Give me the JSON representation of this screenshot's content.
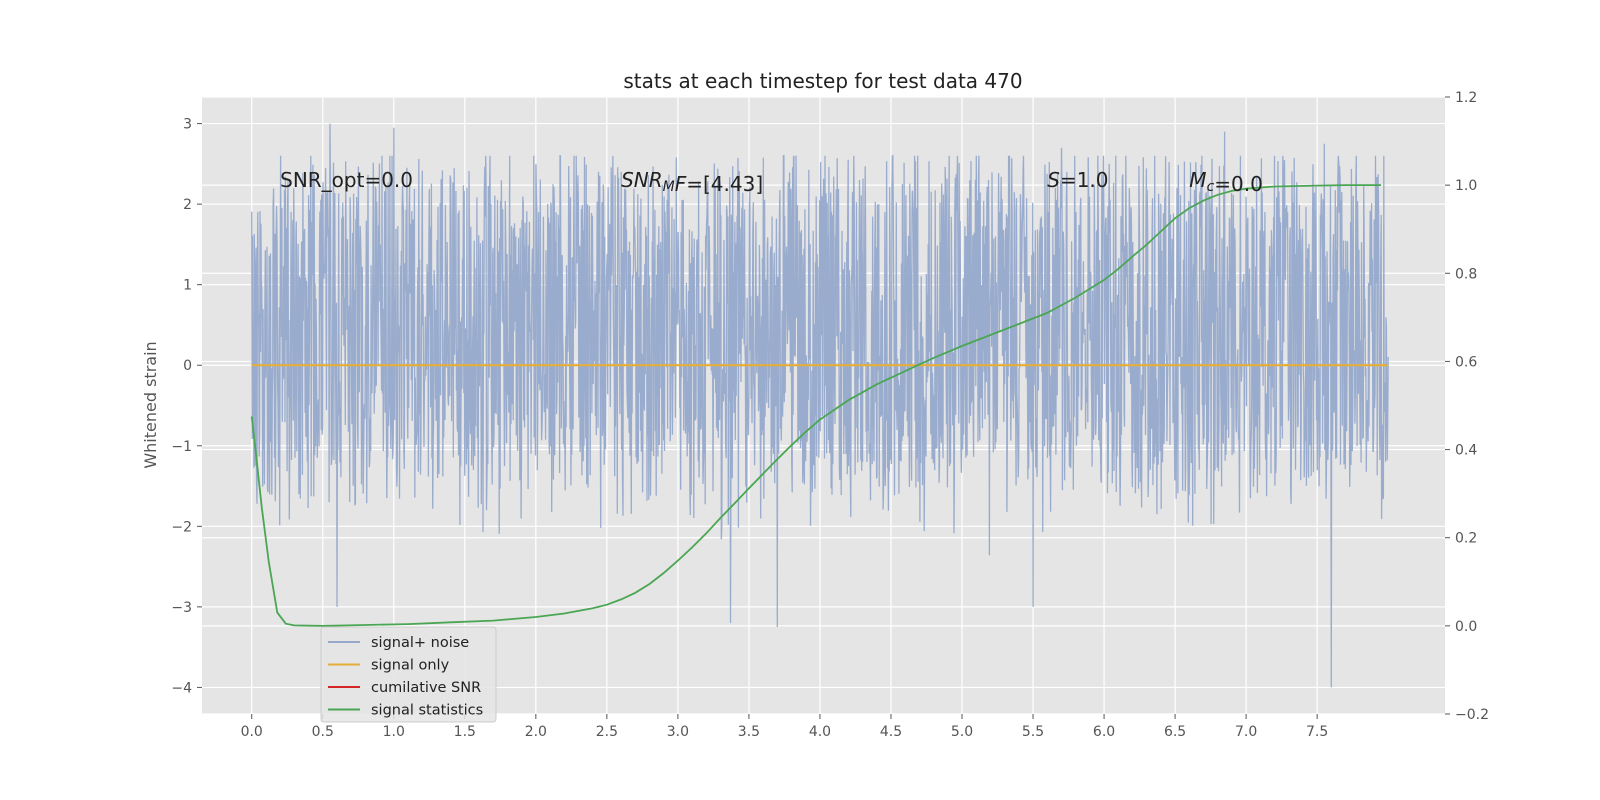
{
  "chart_data": {
    "type": "line",
    "title": "stats at each timestep for test data 470",
    "ylabel": "Whitened strain",
    "y2label": "",
    "xlim": [
      -0.35,
      8.4
    ],
    "ylim": [
      -4.33,
      3.33
    ],
    "y2lim": [
      -0.2,
      1.2
    ],
    "x_ticks": [
      0.0,
      0.5,
      1.0,
      1.5,
      2.0,
      2.5,
      3.0,
      3.5,
      4.0,
      4.5,
      5.0,
      5.5,
      6.0,
      6.5,
      7.0,
      7.5
    ],
    "x_tick_labels": [
      "0.0",
      "0.5",
      "1.0",
      "1.5",
      "2.0",
      "2.5",
      "3.0",
      "3.5",
      "4.0",
      "4.5",
      "5.0",
      "5.5",
      "6.0",
      "6.5",
      "7.0",
      "7.5"
    ],
    "y_ticks": [
      3,
      2,
      1,
      0,
      -1,
      -2,
      -3,
      -4
    ],
    "y_tick_labels": [
      "3",
      "2",
      "1",
      "0",
      "−1",
      "−2",
      "−3",
      "−4"
    ],
    "y2_ticks": [
      1.2,
      1.0,
      0.8,
      0.6,
      0.4,
      0.2,
      0.0,
      -0.2
    ],
    "y2_tick_labels": [
      "1.2",
      "1.0",
      "0.8",
      "0.6",
      "0.4",
      "0.2",
      "0.0",
      "−0.2"
    ],
    "grid": true,
    "legend_position": "lower-left",
    "annotations": [
      {
        "x": 0.2,
        "y": 2.3,
        "parts": [
          {
            "t": "SNR_opt=0.0"
          }
        ]
      },
      {
        "x": 2.6,
        "y": 2.3,
        "parts": [
          {
            "t": "SNR",
            "i": true
          },
          {
            "t": "M",
            "i": true,
            "sub": true
          },
          {
            "t": "F",
            "i": true
          },
          {
            "t": "=[4.43]"
          }
        ]
      },
      {
        "x": 5.6,
        "y": 2.3,
        "parts": [
          {
            "t": "S",
            "i": true
          },
          {
            "t": "=1.0"
          }
        ]
      },
      {
        "x": 6.6,
        "y": 2.3,
        "parts": [
          {
            "t": "M",
            "i": true
          },
          {
            "t": "c",
            "i": true,
            "sub": true
          },
          {
            "t": "=0.0"
          }
        ]
      }
    ],
    "series": [
      {
        "name": "signal+ noise",
        "color": "#96a9cb",
        "axis": "left",
        "kind": "noise",
        "x_range": [
          0.0,
          8.0
        ],
        "amplitude_typical": [
          -1.0,
          1.9
        ],
        "peaks": [
          {
            "x": 0.55,
            "y": 3.0
          },
          {
            "x": 1.0,
            "y": 2.95
          },
          {
            "x": 0.6,
            "y": -3.0
          },
          {
            "x": 3.37,
            "y": -3.2
          },
          {
            "x": 3.7,
            "y": -3.25
          },
          {
            "x": 5.5,
            "y": -3.0
          },
          {
            "x": 6.85,
            "y": 2.9
          },
          {
            "x": 7.6,
            "y": -4.0
          },
          {
            "x": 7.55,
            "y": 2.75
          },
          {
            "x": 2.6,
            "y": 2.4
          },
          {
            "x": 4.2,
            "y": 2.55
          },
          {
            "x": 5.7,
            "y": 2.7
          }
        ]
      },
      {
        "name": "signal only",
        "color": "#e5ae38",
        "axis": "left",
        "x": [
          0.0,
          8.0
        ],
        "y": [
          0.0,
          0.0
        ]
      },
      {
        "name": "cumilative SNR",
        "color": "#d62728",
        "axis": "left",
        "x": [],
        "y": []
      },
      {
        "name": "signal statistics",
        "color": "#4aa652",
        "axis": "right",
        "x": [
          0.0,
          0.03,
          0.07,
          0.12,
          0.18,
          0.24,
          0.3,
          0.5,
          0.8,
          1.1,
          1.4,
          1.7,
          2.0,
          2.2,
          2.4,
          2.5,
          2.6,
          2.7,
          2.8,
          2.9,
          3.0,
          3.1,
          3.2,
          3.3,
          3.4,
          3.5,
          3.6,
          3.7,
          3.8,
          3.9,
          4.0,
          4.2,
          4.4,
          4.6,
          4.8,
          5.0,
          5.2,
          5.4,
          5.6,
          5.8,
          6.0,
          6.1,
          6.2,
          6.3,
          6.4,
          6.5,
          6.6,
          6.7,
          6.8,
          6.9,
          7.0,
          7.2,
          7.5,
          7.7,
          7.95
        ],
        "y": [
          0.475,
          0.39,
          0.27,
          0.145,
          0.03,
          0.005,
          0.001,
          0.0,
          0.002,
          0.004,
          0.008,
          0.012,
          0.02,
          0.028,
          0.04,
          0.048,
          0.06,
          0.075,
          0.095,
          0.12,
          0.148,
          0.178,
          0.21,
          0.245,
          0.278,
          0.312,
          0.345,
          0.378,
          0.41,
          0.44,
          0.468,
          0.512,
          0.548,
          0.578,
          0.608,
          0.635,
          0.66,
          0.685,
          0.71,
          0.745,
          0.785,
          0.81,
          0.838,
          0.865,
          0.895,
          0.925,
          0.948,
          0.965,
          0.978,
          0.987,
          0.992,
          0.997,
          0.999,
          1.0,
          1.0
        ]
      }
    ]
  }
}
